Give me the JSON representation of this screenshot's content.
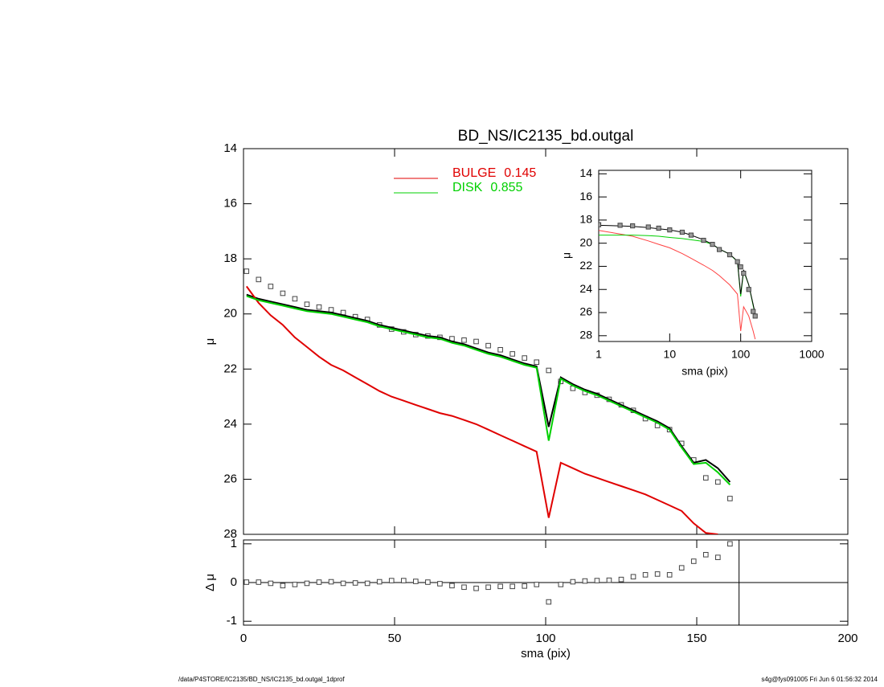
{
  "chart_data": [
    {
      "type": "line",
      "title": "BD_NS/IC2135_bd.outgal",
      "ylabel": "μ",
      "x": [
        1,
        5,
        9,
        13,
        17,
        21,
        25,
        29,
        33,
        37,
        41,
        45,
        49,
        53,
        57,
        61,
        65,
        69,
        73,
        77,
        81,
        85,
        89,
        93,
        97,
        101,
        105,
        109,
        113,
        117,
        121,
        125,
        129,
        133,
        137,
        141,
        145,
        149,
        153,
        157,
        161
      ],
      "xlim": [
        0,
        200
      ],
      "xticks": [
        0,
        50,
        100,
        150,
        200
      ],
      "show_xtick_labels": false,
      "ylim": [
        28,
        14
      ],
      "yticks": [
        14,
        16,
        18,
        20,
        22,
        24,
        26,
        28
      ],
      "series": [
        {
          "mode": "markers",
          "color": "#444444",
          "values": [
            18.45,
            18.75,
            19.0,
            19.25,
            19.45,
            19.65,
            19.75,
            19.85,
            19.95,
            20.1,
            20.2,
            20.4,
            20.55,
            20.65,
            20.75,
            20.8,
            20.85,
            20.9,
            20.95,
            21.0,
            21.15,
            21.3,
            21.45,
            21.6,
            21.75,
            22.05,
            22.45,
            22.7,
            22.85,
            22.95,
            23.1,
            23.3,
            23.5,
            23.8,
            24.05,
            24.2,
            24.7,
            25.3,
            25.95,
            26.1,
            26.7
          ]
        },
        {
          "mode": "line",
          "color": "#000000",
          "values": [
            19.3,
            19.45,
            19.55,
            19.65,
            19.75,
            19.85,
            19.9,
            19.95,
            20.05,
            20.15,
            20.25,
            20.4,
            20.5,
            20.6,
            20.7,
            20.8,
            20.85,
            21.0,
            21.1,
            21.25,
            21.4,
            21.5,
            21.65,
            21.8,
            21.9,
            24.1,
            22.3,
            22.55,
            22.75,
            22.9,
            23.1,
            23.3,
            23.5,
            23.7,
            23.9,
            24.15,
            24.8,
            25.4,
            25.3,
            25.6,
            26.1
          ]
        },
        {
          "mode": "line",
          "name": "BULGE",
          "fraction": 0.145,
          "color": "#e00000",
          "values": [
            19.0,
            19.6,
            20.05,
            20.4,
            20.85,
            21.2,
            21.55,
            21.85,
            22.05,
            22.3,
            22.55,
            22.8,
            23.0,
            23.15,
            23.3,
            23.45,
            23.6,
            23.7,
            23.85,
            24.0,
            24.2,
            24.4,
            24.6,
            24.8,
            25.0,
            27.4,
            25.4,
            25.6,
            25.8,
            25.95,
            26.1,
            26.25,
            26.4,
            26.55,
            26.75,
            26.95,
            27.15,
            27.6,
            27.95,
            28.0,
            null
          ]
        },
        {
          "mode": "line",
          "name": "DISK",
          "fraction": 0.855,
          "color": "#00d000",
          "values": [
            19.35,
            19.5,
            19.6,
            19.7,
            19.8,
            19.9,
            19.95,
            20.0,
            20.1,
            20.2,
            20.3,
            20.45,
            20.55,
            20.65,
            20.75,
            20.85,
            20.9,
            21.05,
            21.15,
            21.3,
            21.45,
            21.55,
            21.7,
            21.85,
            21.95,
            24.6,
            22.35,
            22.6,
            22.8,
            22.95,
            23.15,
            23.35,
            23.55,
            23.75,
            23.95,
            24.2,
            24.85,
            25.45,
            25.4,
            25.75,
            26.2
          ]
        }
      ]
    },
    {
      "type": "line",
      "xlabel": "sma (pix)",
      "ylabel": "Δ μ",
      "x": [
        1,
        5,
        9,
        13,
        17,
        21,
        25,
        29,
        33,
        37,
        41,
        45,
        49,
        53,
        57,
        61,
        65,
        69,
        73,
        77,
        81,
        85,
        89,
        93,
        97,
        101,
        105,
        109,
        113,
        117,
        121,
        125,
        129,
        133,
        137,
        141,
        145,
        149,
        153,
        157,
        161
      ],
      "xlim": [
        0,
        200
      ],
      "xticks": [
        0,
        50,
        100,
        150,
        200
      ],
      "show_xtick_labels": true,
      "ylim": [
        -1.1,
        1.1
      ],
      "yticks": [
        -1,
        0,
        1
      ],
      "vline": 164,
      "series": [
        {
          "mode": "markers",
          "color": "#444444",
          "values": [
            0.01,
            0.01,
            -0.02,
            -0.08,
            -0.05,
            -0.02,
            0.01,
            0.02,
            -0.02,
            -0.01,
            -0.02,
            0.02,
            0.05,
            0.05,
            0.03,
            0.01,
            -0.03,
            -0.08,
            -0.12,
            -0.15,
            -0.12,
            -0.1,
            -0.1,
            -0.09,
            -0.05,
            -0.5,
            -0.05,
            0.02,
            0.04,
            0.05,
            0.06,
            0.08,
            0.15,
            0.2,
            0.22,
            0.2,
            0.38,
            0.55,
            0.72,
            0.65,
            1.0
          ]
        }
      ]
    },
    {
      "type": "line",
      "xlabel": "sma (pix)",
      "ylabel": "μ",
      "xscale": "log",
      "x": [
        1,
        2,
        3,
        5,
        7,
        10,
        15,
        20,
        30,
        40,
        50,
        70,
        90,
        100,
        110,
        130,
        150,
        160
      ],
      "xlim": [
        1,
        1000
      ],
      "xticks": [
        1,
        10,
        100,
        1000
      ],
      "show_xtick_labels": true,
      "ylim": [
        28.5,
        13.7
      ],
      "yticks": [
        14,
        16,
        18,
        20,
        22,
        24,
        26,
        28
      ],
      "series": [
        {
          "mode": "line",
          "color": "#ff4040",
          "values": [
            18.9,
            19.2,
            19.4,
            19.8,
            20.1,
            20.4,
            20.9,
            21.3,
            21.9,
            22.35,
            22.8,
            23.6,
            24.4,
            27.6,
            25.5,
            26.3,
            27.6,
            28.3
          ]
        },
        {
          "mode": "line",
          "color": "#00d000",
          "values": [
            19.3,
            19.3,
            19.3,
            19.35,
            19.4,
            19.5,
            19.6,
            19.7,
            19.85,
            20.1,
            20.5,
            20.95,
            21.6,
            24.6,
            22.4,
            23.6,
            25.4,
            26.2
          ]
        },
        {
          "mode": "line",
          "color": "#000000",
          "values": [
            18.45,
            18.5,
            18.55,
            18.65,
            18.75,
            18.85,
            19.05,
            19.3,
            19.7,
            20.1,
            20.5,
            20.95,
            21.55,
            24.4,
            22.3,
            23.6,
            25.3,
            26.1
          ]
        },
        {
          "mode": "markers",
          "color": "#444444",
          "values": [
            18.4,
            18.45,
            18.5,
            18.6,
            18.7,
            18.85,
            19.05,
            19.3,
            19.75,
            20.1,
            20.55,
            21.0,
            21.6,
            22.05,
            22.6,
            24.0,
            25.9,
            26.3
          ]
        }
      ]
    }
  ],
  "footer": {
    "left": "/data/P4STORE/IC2135/BD_NS/IC2135_bd.outgal_1dprof",
    "right": "s4g@fys091005  Fri Jun  6 01:56:32 2014"
  }
}
